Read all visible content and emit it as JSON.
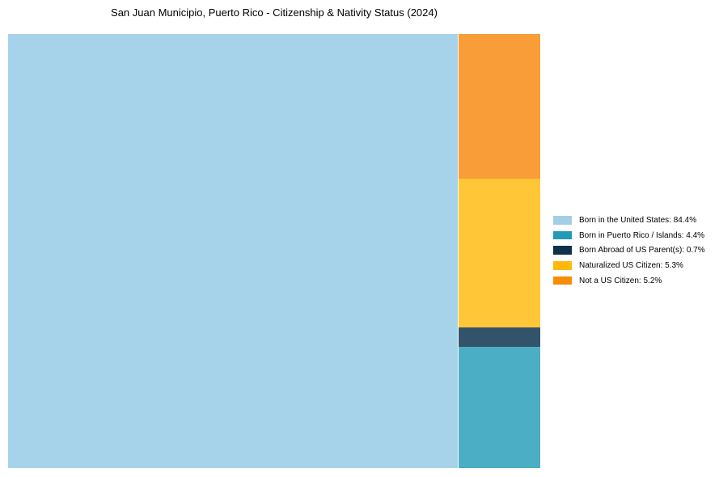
{
  "title": "San Juan Municipio, Puerto Rico - Citizenship & Nativity Status (2024)",
  "chart_data": {
    "type": "treemap",
    "title": "San Juan Municipio, Puerto Rico - Citizenship & Nativity Status (2024)",
    "unit": "%",
    "legend_position": "right-middle",
    "grid": false,
    "series": [
      {
        "label": "Born in the United States",
        "value": 84.4,
        "legend_text": "Born in the United States: 84.4%",
        "legend_color": "#A3CEE3",
        "fill_color": "#A7D3EA"
      },
      {
        "label": "Born in Puerto Rico / Islands",
        "value": 4.4,
        "legend_text": "Born in Puerto Rico / Islands: 4.4%",
        "legend_color": "#2299B5",
        "fill_color": "#4BAEC4"
      },
      {
        "label": "Born Abroad of US Parent(s)",
        "value": 0.7,
        "legend_text": "Born Abroad of US Parent(s): 0.7%",
        "legend_color": "#0E3049",
        "fill_color": "#33536A"
      },
      {
        "label": "Naturalized US Citizen",
        "value": 5.3,
        "legend_text": "Naturalized US Citizen: 5.3%",
        "legend_color": "#FFB90D",
        "fill_color": "#FFC637"
      },
      {
        "label": "Not a US Citizen",
        "value": 5.2,
        "legend_text": "Not a US Citizen: 5.2%",
        "legend_color": "#F78D06",
        "fill_color": "#F99D38"
      }
    ]
  }
}
